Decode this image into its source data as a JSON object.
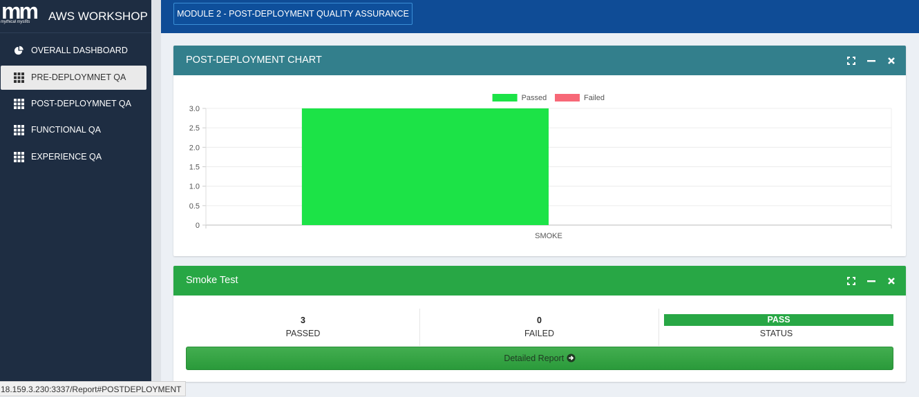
{
  "sidebar": {
    "logo_mark": "mm",
    "logo_sub": "mythical mysfits",
    "title": "AWS WORKSHOP",
    "items": [
      {
        "label": "OVERALL DASHBOARD",
        "icon": "pie-chart-icon",
        "active": false
      },
      {
        "label": "PRE-DEPLOYMNET QA",
        "icon": "grid-icon",
        "active": true
      },
      {
        "label": "POST-DEPLOYMNET QA",
        "icon": "grid-icon",
        "active": false
      },
      {
        "label": "FUNCTIONAL QA",
        "icon": "grid-icon",
        "active": false
      },
      {
        "label": "EXPERIENCE QA",
        "icon": "grid-icon",
        "active": false
      }
    ]
  },
  "header": {
    "module_label": "MODULE 2 - POST-DEPLOYMENT QUALITY ASSURANCE"
  },
  "chart_panel": {
    "title": "POST-DEPLOYMENT CHART",
    "header_color": "#337f8c"
  },
  "chart_data": {
    "type": "bar",
    "categories": [
      "SMOKE"
    ],
    "series": [
      {
        "name": "Passed",
        "values": [
          3
        ],
        "color": "#1ce347"
      },
      {
        "name": "Failed",
        "values": [
          0
        ],
        "color": "#f76877"
      }
    ],
    "yticks": [
      "3.0",
      "2.5",
      "2.0",
      "1.5",
      "1.0",
      "0.5",
      "0"
    ],
    "ylim": [
      0,
      3
    ],
    "legend_position": "top-center",
    "grid": true
  },
  "smoke_panel": {
    "title": "Smoke Test",
    "header_color": "#28a745",
    "passed_value": "3",
    "passed_label": "PASSED",
    "failed_value": "0",
    "failed_label": "FAILED",
    "status_value": "PASS",
    "status_label": "STATUS",
    "report_label": "Detailed Report"
  },
  "status_bar": {
    "url": "18.159.3.230:3337/Report#POSTDEPLOYMENT"
  }
}
